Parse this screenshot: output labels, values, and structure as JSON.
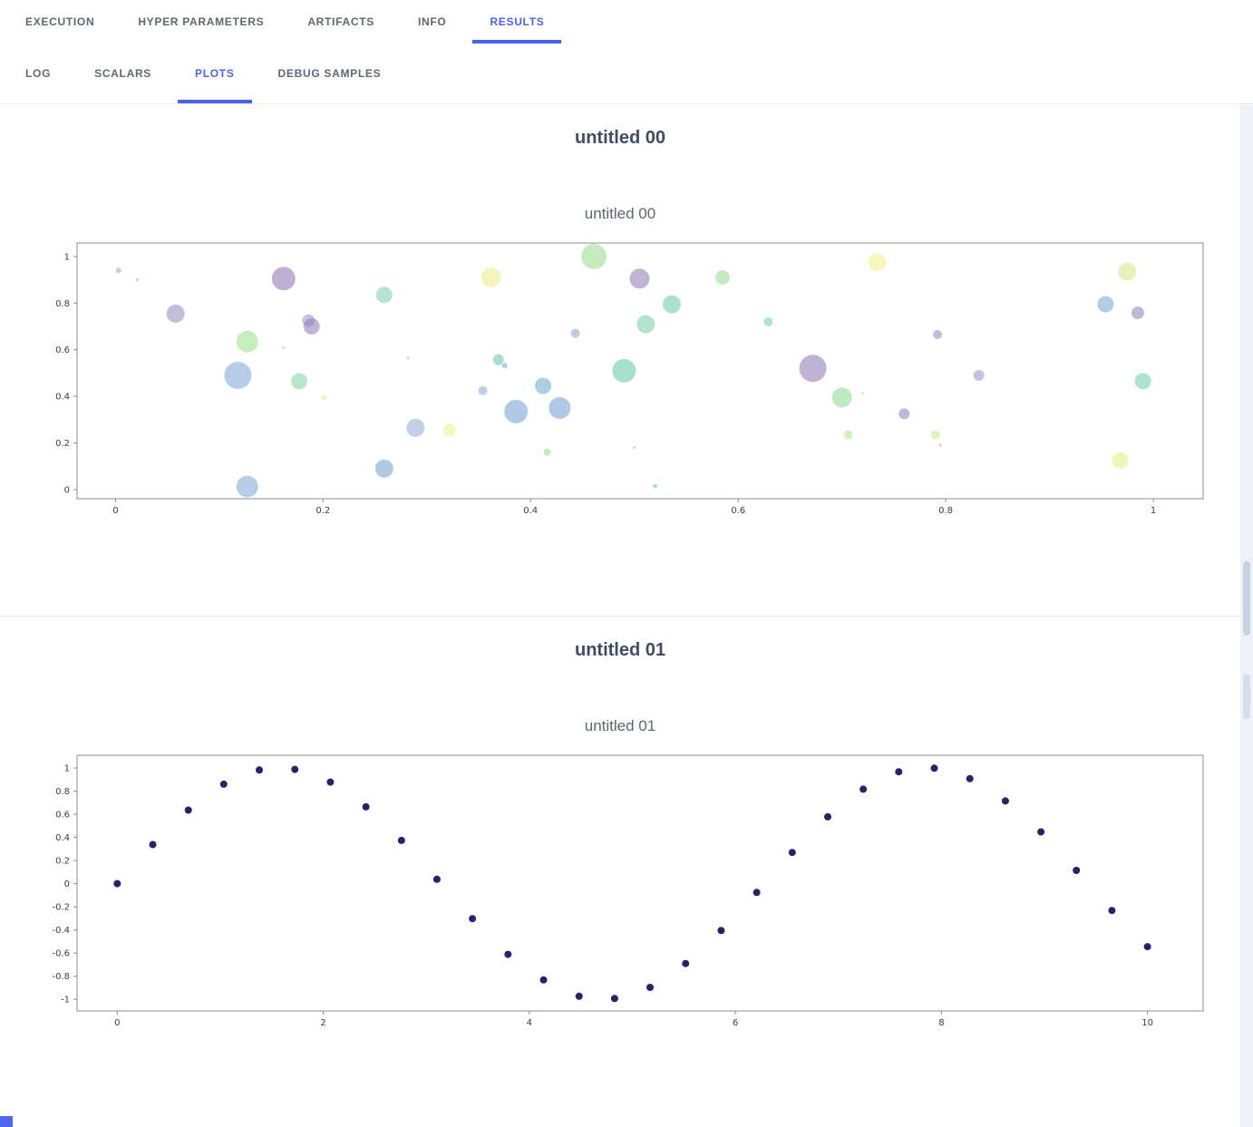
{
  "header": {
    "tabs": [
      {
        "label": "EXECUTION",
        "active": false
      },
      {
        "label": "HYPER PARAMETERS",
        "active": false
      },
      {
        "label": "ARTIFACTS",
        "active": false
      },
      {
        "label": "INFO",
        "active": false
      },
      {
        "label": "RESULTS",
        "active": true
      }
    ]
  },
  "subtabs": [
    {
      "label": "LOG",
      "active": false
    },
    {
      "label": "SCALARS",
      "active": false
    },
    {
      "label": "PLOTS",
      "active": true
    },
    {
      "label": "DEBUG SAMPLES",
      "active": false
    }
  ],
  "colors": {
    "accent": "#4a63ec",
    "tab_inactive": "#5d6876",
    "axis_stroke": "#8c8c8c"
  },
  "plots": [
    {
      "section_title": "untitled 00",
      "chart_title": "untitled 00"
    },
    {
      "section_title": "untitled 01",
      "chart_title": "untitled 01"
    }
  ],
  "chart_data": [
    {
      "type": "scatter",
      "title": "untitled 00",
      "xlim": [
        -0.037,
        1.048
      ],
      "ylim": [
        -0.039,
        1.058
      ],
      "xticks": [
        0,
        0.2,
        0.4,
        0.6,
        0.8,
        1
      ],
      "yticks": [
        0,
        0.2,
        0.4,
        0.6,
        0.8,
        1
      ],
      "grid": false,
      "opacity": 0.55,
      "point_format": [
        "x",
        "y",
        "radius_px",
        "color"
      ],
      "points": [
        [
          0.003,
          0.94,
          3,
          "#93a9c6"
        ],
        [
          0.021,
          0.9,
          1.5,
          "#93a9c6"
        ],
        [
          0.058,
          0.755,
          10,
          "#9186bd"
        ],
        [
          0.118,
          0.49,
          15,
          "#7ba3d1"
        ],
        [
          0.127,
          0.635,
          12,
          "#9bdc86"
        ],
        [
          0.127,
          0.013,
          12,
          "#7ba3d1"
        ],
        [
          0.162,
          0.905,
          13,
          "#8a70ae"
        ],
        [
          0.162,
          0.61,
          1.5,
          "#b9c46a"
        ],
        [
          0.177,
          0.465,
          9,
          "#7fd29e"
        ],
        [
          0.186,
          0.725,
          7,
          "#8c97cb"
        ],
        [
          0.189,
          0.7,
          9,
          "#8d78b4"
        ],
        [
          0.201,
          0.395,
          3,
          "#dcec86"
        ],
        [
          0.259,
          0.835,
          9,
          "#74d1a2"
        ],
        [
          0.259,
          0.09,
          10,
          "#6f9fce"
        ],
        [
          0.282,
          0.565,
          1.5,
          "#9aa9c0"
        ],
        [
          0.289,
          0.265,
          10,
          "#93a9d4"
        ],
        [
          0.322,
          0.255,
          7,
          "#ecf088"
        ],
        [
          0.354,
          0.425,
          5,
          "#8fa8cf"
        ],
        [
          0.362,
          0.91,
          11,
          "#e9ed85"
        ],
        [
          0.369,
          0.557,
          6,
          "#5fc7ac"
        ],
        [
          0.375,
          0.532,
          3,
          "#6aabcf"
        ],
        [
          0.386,
          0.335,
          13,
          "#6f9fd0"
        ],
        [
          0.412,
          0.445,
          9,
          "#66a9c9"
        ],
        [
          0.416,
          0.16,
          4,
          "#90d98c"
        ],
        [
          0.428,
          0.35,
          12,
          "#6f9fd0"
        ],
        [
          0.443,
          0.67,
          5,
          "#87a3cc"
        ],
        [
          0.461,
          1.0,
          14,
          "#97dc88"
        ],
        [
          0.49,
          0.51,
          13,
          "#5cc8a8"
        ],
        [
          0.5,
          0.18,
          1.5,
          "#b0a9c9"
        ],
        [
          0.505,
          0.905,
          11,
          "#8d77b2"
        ],
        [
          0.511,
          0.71,
          10,
          "#72d0a0"
        ],
        [
          0.52,
          0.015,
          2.5,
          "#62cbb0"
        ],
        [
          0.536,
          0.795,
          10,
          "#66cba8"
        ],
        [
          0.585,
          0.91,
          8,
          "#93da90"
        ],
        [
          0.629,
          0.72,
          5,
          "#6fd0a6"
        ],
        [
          0.672,
          0.52,
          15,
          "#8a72b0"
        ],
        [
          0.7,
          0.395,
          11,
          "#8ad88e"
        ],
        [
          0.706,
          0.235,
          5,
          "#b5e47f"
        ],
        [
          0.72,
          0.415,
          1.5,
          "#c0cf78"
        ],
        [
          0.734,
          0.975,
          10,
          "#f0ef86"
        ],
        [
          0.76,
          0.325,
          6,
          "#8d7cb4"
        ],
        [
          0.792,
          0.665,
          5,
          "#9383bc"
        ],
        [
          0.79,
          0.235,
          5,
          "#c5e882"
        ],
        [
          0.795,
          0.19,
          1.5,
          "#8fb0d8"
        ],
        [
          0.832,
          0.49,
          6,
          "#9490c0"
        ],
        [
          0.954,
          0.795,
          9,
          "#78a3cf"
        ],
        [
          0.975,
          0.935,
          10,
          "#cdea7f"
        ],
        [
          0.985,
          0.758,
          7,
          "#8f7ab2"
        ],
        [
          0.99,
          0.465,
          9,
          "#68cda4"
        ],
        [
          0.968,
          0.125,
          9,
          "#e5ec7f"
        ]
      ]
    },
    {
      "type": "scatter",
      "title": "untitled 01",
      "xlim": [
        -0.39,
        10.54
      ],
      "ylim": [
        -1.1,
        1.11
      ],
      "xticks": [
        0,
        2,
        4,
        6,
        8,
        10
      ],
      "yticks": [
        -1,
        -0.8,
        -0.6,
        -0.4,
        -0.2,
        0,
        0.2,
        0.4,
        0.6,
        0.8,
        1
      ],
      "grid": false,
      "marker_color": "#2a2167",
      "marker_r": 4,
      "x": [
        0,
        0.345,
        0.69,
        1.034,
        1.379,
        1.724,
        2.069,
        2.414,
        2.759,
        3.103,
        3.448,
        3.793,
        4.138,
        4.483,
        4.828,
        5.172,
        5.517,
        5.862,
        6.207,
        6.552,
        6.897,
        7.241,
        7.586,
        7.931,
        8.276,
        8.621,
        8.966,
        9.31,
        9.655,
        10
      ],
      "y": [
        0,
        0.338,
        0.636,
        0.86,
        0.982,
        0.988,
        0.878,
        0.664,
        0.374,
        0.038,
        -0.302,
        -0.611,
        -0.832,
        -0.973,
        -0.993,
        -0.896,
        -0.69,
        -0.405,
        -0.076,
        0.27,
        0.578,
        0.817,
        0.967,
        0.998,
        0.908,
        0.715,
        0.448,
        0.115,
        -0.232,
        -0.544
      ]
    }
  ]
}
